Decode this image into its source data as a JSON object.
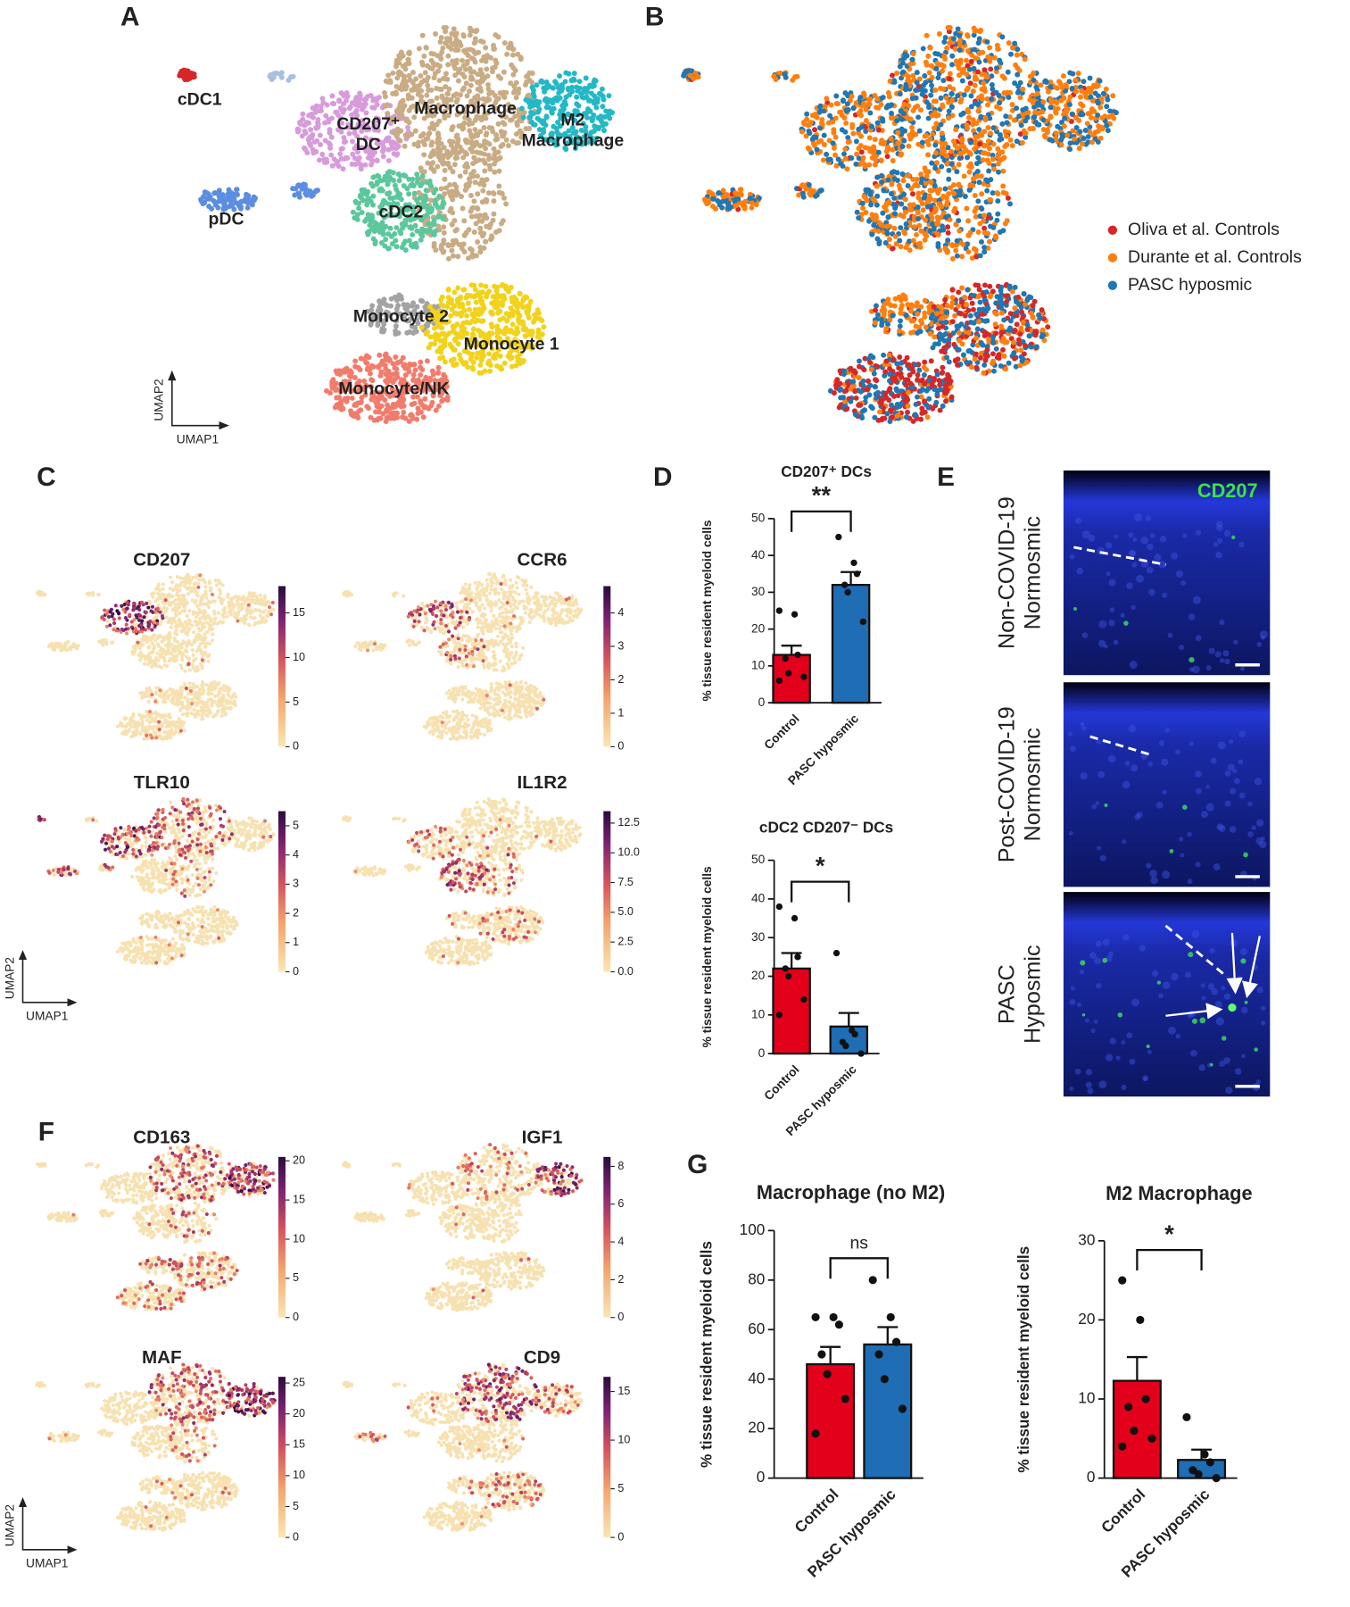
{
  "figure": {
    "panel_letters": [
      "A",
      "B",
      "C",
      "D",
      "E",
      "F",
      "G"
    ],
    "umap_axis": [
      "UMAP1",
      "UMAP2"
    ],
    "cluster_labels": [
      [
        "cDC1"
      ],
      [
        "CD207⁺",
        "DC"
      ],
      [
        "Macrophage"
      ],
      [
        "M2",
        "Macrophage"
      ],
      [
        "pDC"
      ],
      [
        "cDC2"
      ],
      [
        "Monocyte 2"
      ],
      [
        "Monocyte 1"
      ],
      [
        "Monocyte/NK"
      ]
    ],
    "legend": [
      {
        "name": "Oliva et al. Controls",
        "color": "#d62728"
      },
      {
        "name": "Durante et al. Controls",
        "color": "#ff7f0e"
      },
      {
        "name": "PASC hyposmic",
        "color": "#1f77b4"
      }
    ],
    "feature_plots": [
      {
        "gene": "CD207",
        "clim": [
          0,
          18
        ],
        "ticks": [
          0,
          5,
          10,
          15
        ]
      },
      {
        "gene": "CCR6",
        "clim": [
          0,
          4.8
        ],
        "ticks": [
          0,
          1,
          2,
          3,
          4
        ]
      },
      {
        "gene": "TLR10",
        "clim": [
          0,
          5.5
        ],
        "ticks": [
          0,
          1,
          2,
          3,
          4,
          5
        ]
      },
      {
        "gene": "IL1R2",
        "clim": [
          0,
          13.5
        ],
        "ticks": [
          {
            "value": 0,
            "label": "0.0"
          },
          2.5,
          {
            "value": 5,
            "label": "5.0"
          },
          7.5,
          {
            "value": 10,
            "label": "10.0"
          },
          12.5
        ]
      },
      {
        "gene": "CD163",
        "clim": [
          0,
          20.5
        ],
        "ticks": [
          0,
          5,
          10,
          15,
          20
        ]
      },
      {
        "gene": "IGF1",
        "clim": [
          0,
          8.5
        ],
        "ticks": [
          0,
          2,
          4,
          6,
          8
        ]
      },
      {
        "gene": "MAF",
        "clim": [
          0,
          26
        ],
        "ticks": [
          0,
          5,
          10,
          15,
          20,
          25
        ]
      },
      {
        "gene": "CD9",
        "clim": [
          0,
          16.5
        ],
        "ticks": [
          0,
          5,
          10,
          15
        ]
      }
    ],
    "micrograph_stain": "CD207",
    "micrograph_rows": [
      [
        "Non-COVID-19",
        "Normosmic"
      ],
      [
        "Post-COVID-19",
        "Normosmic"
      ],
      [
        "PASC",
        "Hyposmic"
      ]
    ]
  },
  "chart_data": [
    {
      "type": "bar",
      "title": "CD207⁺ DCs",
      "y_label": "% tissue resident myeloid cells",
      "categories": [
        "Control",
        "PASC hyposmic"
      ],
      "values": [
        13,
        32
      ],
      "errors": [
        2.5,
        3.5
      ],
      "colors": [
        "#e3001b",
        "#1f6db4"
      ],
      "points": [
        [
          25,
          24,
          13,
          12,
          8,
          7,
          6
        ],
        [
          45,
          38,
          35,
          32,
          30,
          22
        ]
      ],
      "significance": "**",
      "ylim": [
        0,
        50
      ],
      "yticks": [
        0,
        10,
        20,
        30,
        40,
        50
      ]
    },
    {
      "type": "bar",
      "title": "cDC2 CD207⁻ DCs",
      "y_label": "% tissue resident myeloid cells",
      "categories": [
        "Control",
        "PASC hyposmic"
      ],
      "values": [
        22,
        7
      ],
      "errors": [
        4,
        3.5
      ],
      "colors": [
        "#e3001b",
        "#1f6db4"
      ],
      "points": [
        [
          38,
          35,
          25,
          22,
          20,
          14,
          10
        ],
        [
          26,
          6,
          5,
          3,
          2,
          0
        ]
      ],
      "significance": "*",
      "ylim": [
        0,
        50
      ],
      "yticks": [
        0,
        10,
        20,
        30,
        40,
        50
      ]
    },
    {
      "type": "bar",
      "title": "Macrophage (no M2)",
      "y_label": "% tissue resident myeloid cells",
      "categories": [
        "Control",
        "PASC hyposmic"
      ],
      "values": [
        46,
        54
      ],
      "errors": [
        7,
        7
      ],
      "colors": [
        "#e3001b",
        "#1f6db4"
      ],
      "points": [
        [
          65,
          65,
          62,
          50,
          42,
          32,
          18
        ],
        [
          80,
          65,
          55,
          50,
          40,
          28
        ]
      ],
      "significance": "ns",
      "ylim": [
        0,
        100
      ],
      "yticks": [
        0,
        20,
        40,
        60,
        80,
        100
      ]
    },
    {
      "type": "bar",
      "title": "M2 Macrophage",
      "y_label": "% tissue resident myeloid cells",
      "categories": [
        "Control",
        "PASC hyposmic"
      ],
      "values": [
        12.3,
        2.3
      ],
      "errors": [
        3,
        1.3
      ],
      "colors": [
        "#e3001b",
        "#1f6db4"
      ],
      "points": [
        [
          25,
          20,
          10,
          9,
          6,
          5,
          4
        ],
        [
          7.7,
          3,
          2,
          1,
          0.5,
          0
        ]
      ],
      "significance": "*",
      "ylim": [
        0,
        30
      ],
      "yticks": [
        0,
        10,
        20,
        30
      ]
    }
  ]
}
